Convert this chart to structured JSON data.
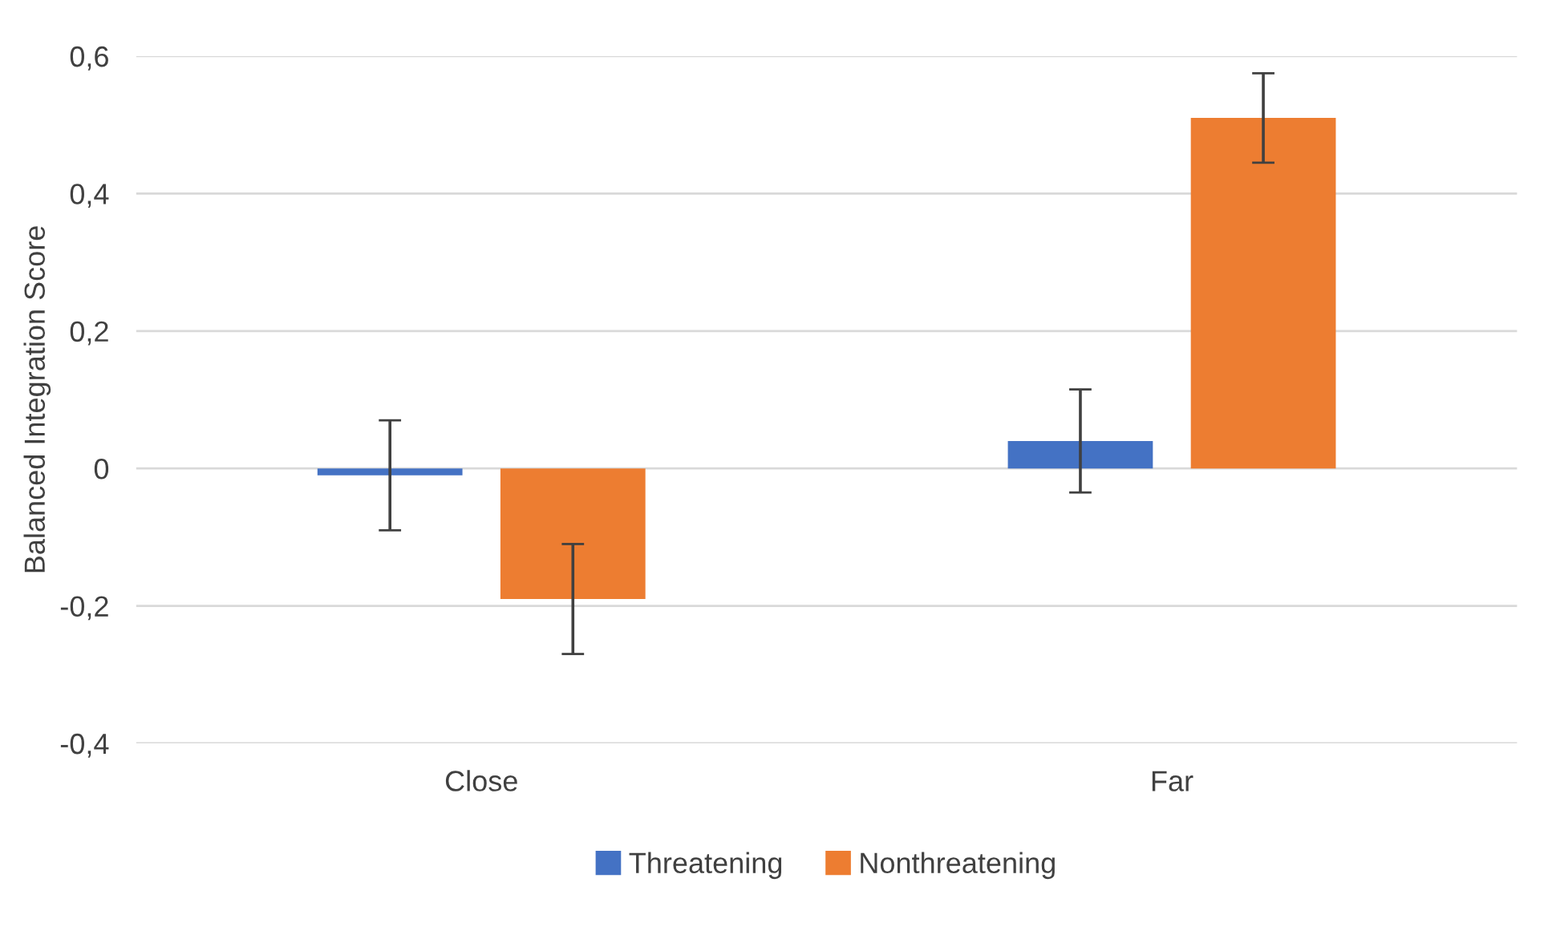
{
  "chart_data": {
    "type": "bar",
    "ylabel": "Balanced Integration Score",
    "categories": [
      "Close",
      "Far"
    ],
    "series": [
      {
        "name": "Threatening",
        "color": "#4472c4",
        "values": [
          -0.01,
          0.04
        ],
        "errors": [
          0.08,
          0.075
        ]
      },
      {
        "name": "Nonthreatening",
        "color": "#ed7d31",
        "values": [
          -0.19,
          0.51
        ],
        "errors": [
          0.08,
          0.065
        ]
      }
    ],
    "ylim": [
      -0.4,
      0.6
    ],
    "yticks": [
      {
        "value": -0.4,
        "label": "-0,4"
      },
      {
        "value": -0.2,
        "label": "-0,2"
      },
      {
        "value": 0,
        "label": "0"
      },
      {
        "value": 0.2,
        "label": "0,2"
      },
      {
        "value": 0.4,
        "label": "0,4"
      },
      {
        "value": 0.6,
        "label": "0,6"
      }
    ],
    "grid": "y",
    "legend": "bottom"
  }
}
